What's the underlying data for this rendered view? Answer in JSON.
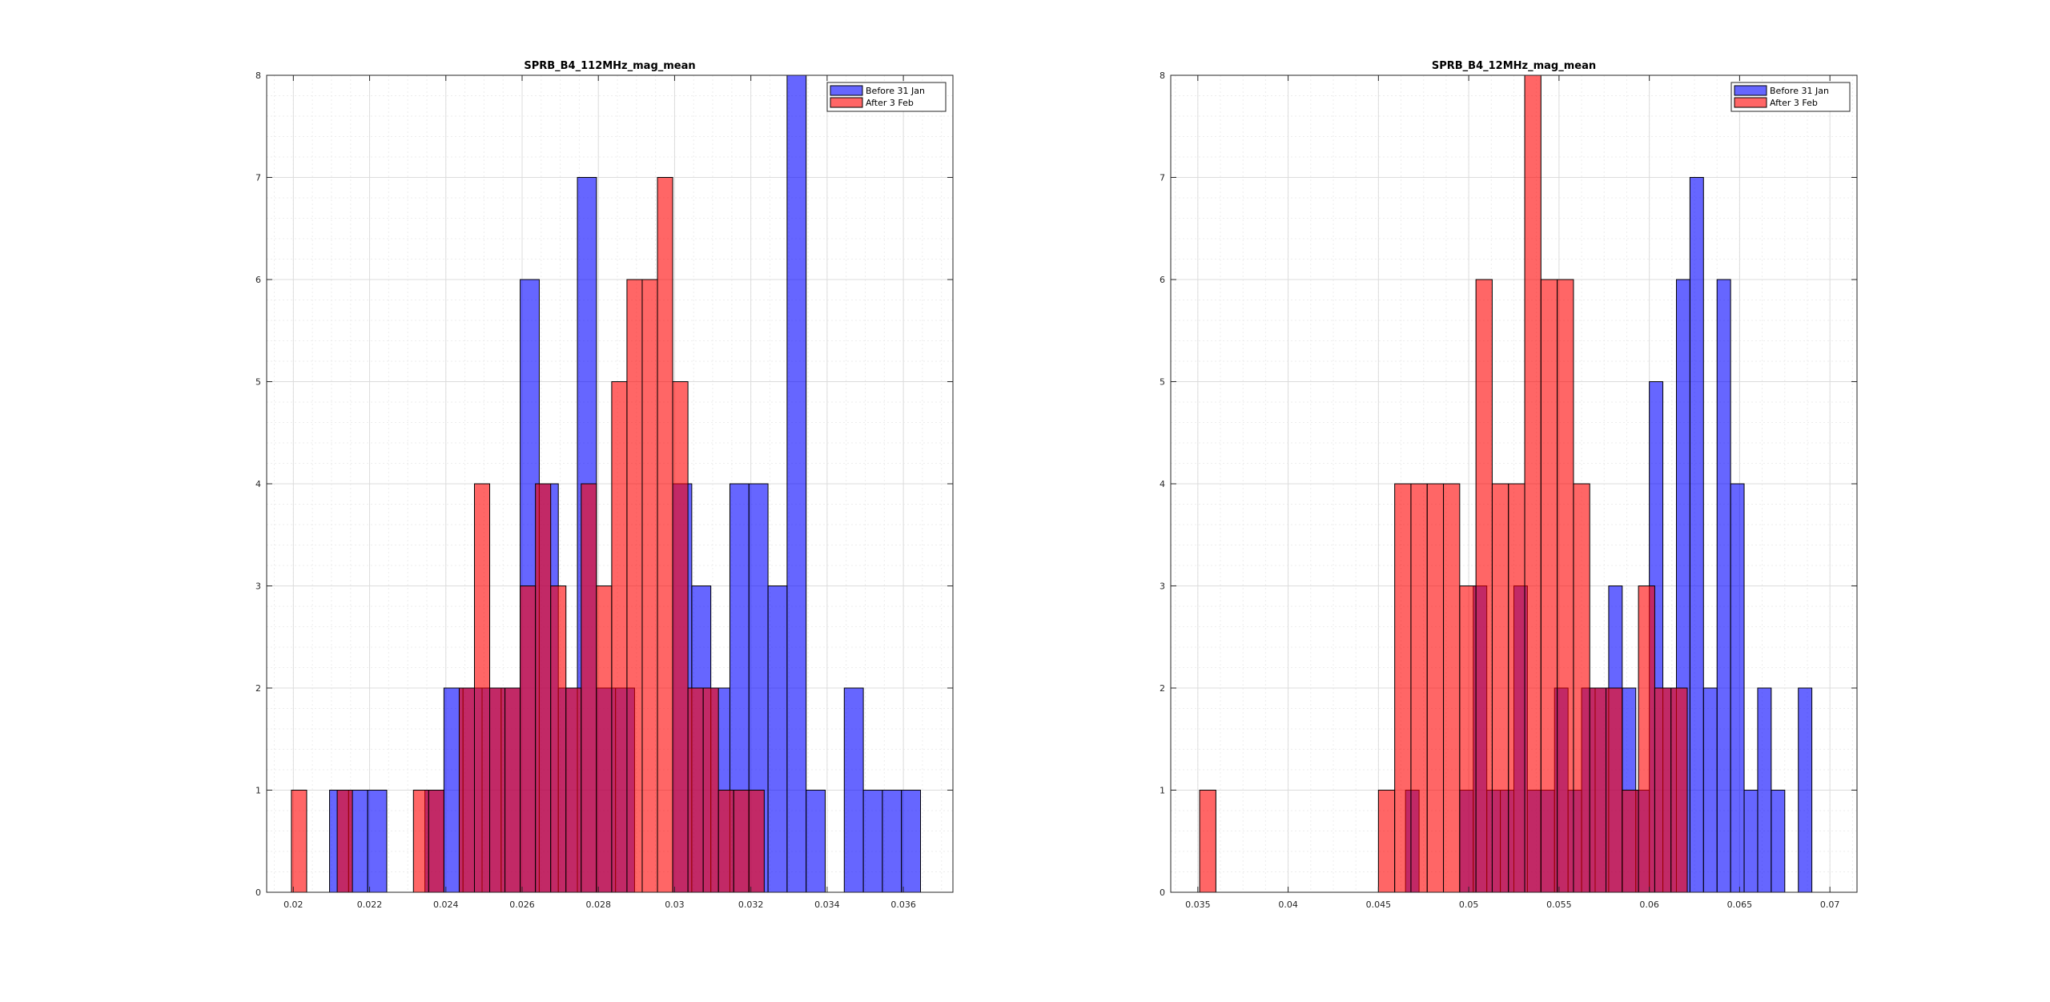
{
  "figure": {
    "background": "#ffffff",
    "colors": {
      "before": "#0000ff",
      "after": "#ff0000",
      "overlap": "#aa1b62",
      "bar_opacity": 0.6
    }
  },
  "chart_data": [
    {
      "type": "bar",
      "title": "SPRB_B4_112MHz_mag_mean",
      "xlabel": "",
      "ylabel": "",
      "xlim": [
        0.0193,
        0.0373
      ],
      "ylim": [
        0,
        8
      ],
      "grid": true,
      "minor_grid": true,
      "legend_position": "top-right",
      "xticks": [
        0.02,
        0.022,
        0.024,
        0.026,
        0.028,
        0.03,
        0.032,
        0.034,
        0.036
      ],
      "xtick_labels": [
        "0.02",
        "0.022",
        "0.024",
        "0.026",
        "0.028",
        "0.03",
        "0.032",
        "0.034",
        "0.036"
      ],
      "yticks": [
        0,
        1,
        2,
        3,
        4,
        5,
        6,
        7,
        8
      ],
      "ytick_labels": [
        "0",
        "1",
        "2",
        "3",
        "4",
        "5",
        "6",
        "7",
        "8"
      ],
      "series": [
        {
          "name": "Before 31 Jan",
          "color": "#0000ff",
          "bin_width": 0.0005,
          "bin_starts": [
            0.02095,
            0.02145,
            0.02195,
            0.02345,
            0.02395,
            0.02445,
            0.02495,
            0.02545,
            0.02595,
            0.02645,
            0.02695,
            0.02745,
            0.02795,
            0.02845,
            0.02995,
            0.03045,
            0.03095,
            0.03145,
            0.03195,
            0.03245,
            0.03295,
            0.03345,
            0.03445,
            0.03495,
            0.03545,
            0.03595
          ],
          "values": [
            1,
            1,
            1,
            1,
            2,
            2,
            2,
            2,
            6,
            4,
            2,
            7,
            2,
            2,
            4,
            3,
            2,
            4,
            4,
            3,
            8,
            1,
            2,
            1,
            1,
            1
          ]
        },
        {
          "name": "After 3 Feb",
          "color": "#ff0000",
          "bin_width": 0.0004,
          "bin_starts": [
            0.01995,
            0.02115,
            0.02315,
            0.02355,
            0.02435,
            0.02475,
            0.02515,
            0.02555,
            0.02595,
            0.02635,
            0.02675,
            0.02715,
            0.02755,
            0.02795,
            0.02835,
            0.02875,
            0.02915,
            0.02955,
            0.02995,
            0.03035,
            0.03075,
            0.03115,
            0.03155,
            0.03195
          ],
          "values": [
            1,
            1,
            1,
            1,
            2,
            4,
            2,
            2,
            3,
            4,
            3,
            2,
            4,
            3,
            5,
            6,
            6,
            7,
            5,
            2,
            2,
            1,
            1,
            1
          ]
        }
      ]
    },
    {
      "type": "bar",
      "title": "SPRB_B4_12MHz_mag_mean",
      "xlabel": "",
      "ylabel": "",
      "xlim": [
        0.0335,
        0.0715
      ],
      "ylim": [
        0,
        8
      ],
      "grid": true,
      "minor_grid": true,
      "legend_position": "top-right",
      "xticks": [
        0.035,
        0.04,
        0.045,
        0.05,
        0.055,
        0.06,
        0.065,
        0.07
      ],
      "xtick_labels": [
        "0.035",
        "0.04",
        "0.045",
        "0.05",
        "0.055",
        "0.06",
        "0.065",
        "0.07"
      ],
      "yticks": [
        0,
        1,
        2,
        3,
        4,
        5,
        6,
        7,
        8
      ],
      "ytick_labels": [
        "0",
        "1",
        "2",
        "3",
        "4",
        "5",
        "6",
        "7",
        "8"
      ],
      "series": [
        {
          "name": "Before 31 Jan",
          "color": "#0000ff",
          "bin_width": 0.00075,
          "bin_starts": [
            0.0465,
            0.0495,
            0.05025,
            0.051,
            0.05175,
            0.0525,
            0.05325,
            0.054,
            0.05475,
            0.0555,
            0.05625,
            0.057,
            0.05775,
            0.0585,
            0.05925,
            0.06,
            0.06075,
            0.0615,
            0.06225,
            0.063,
            0.06375,
            0.0645,
            0.06525,
            0.066,
            0.06675,
            0.06825
          ],
          "values": [
            1,
            1,
            3,
            1,
            1,
            3,
            1,
            1,
            2,
            1,
            2,
            2,
            3,
            2,
            1,
            5,
            2,
            6,
            7,
            2,
            6,
            4,
            1,
            2,
            1,
            2
          ]
        },
        {
          "name": "After 3 Feb",
          "color": "#ff0000",
          "bin_width": 0.0009,
          "bin_starts": [
            0.0351,
            0.045,
            0.0459,
            0.0468,
            0.0477,
            0.0486,
            0.0495,
            0.0504,
            0.0513,
            0.0522,
            0.0531,
            0.054,
            0.0549,
            0.0558,
            0.0567,
            0.0576,
            0.0585,
            0.0594,
            0.0603,
            0.0612
          ],
          "values": [
            1,
            1,
            4,
            4,
            4,
            4,
            3,
            6,
            4,
            4,
            8,
            6,
            6,
            4,
            2,
            2,
            1,
            3,
            2,
            2
          ]
        }
      ]
    }
  ]
}
